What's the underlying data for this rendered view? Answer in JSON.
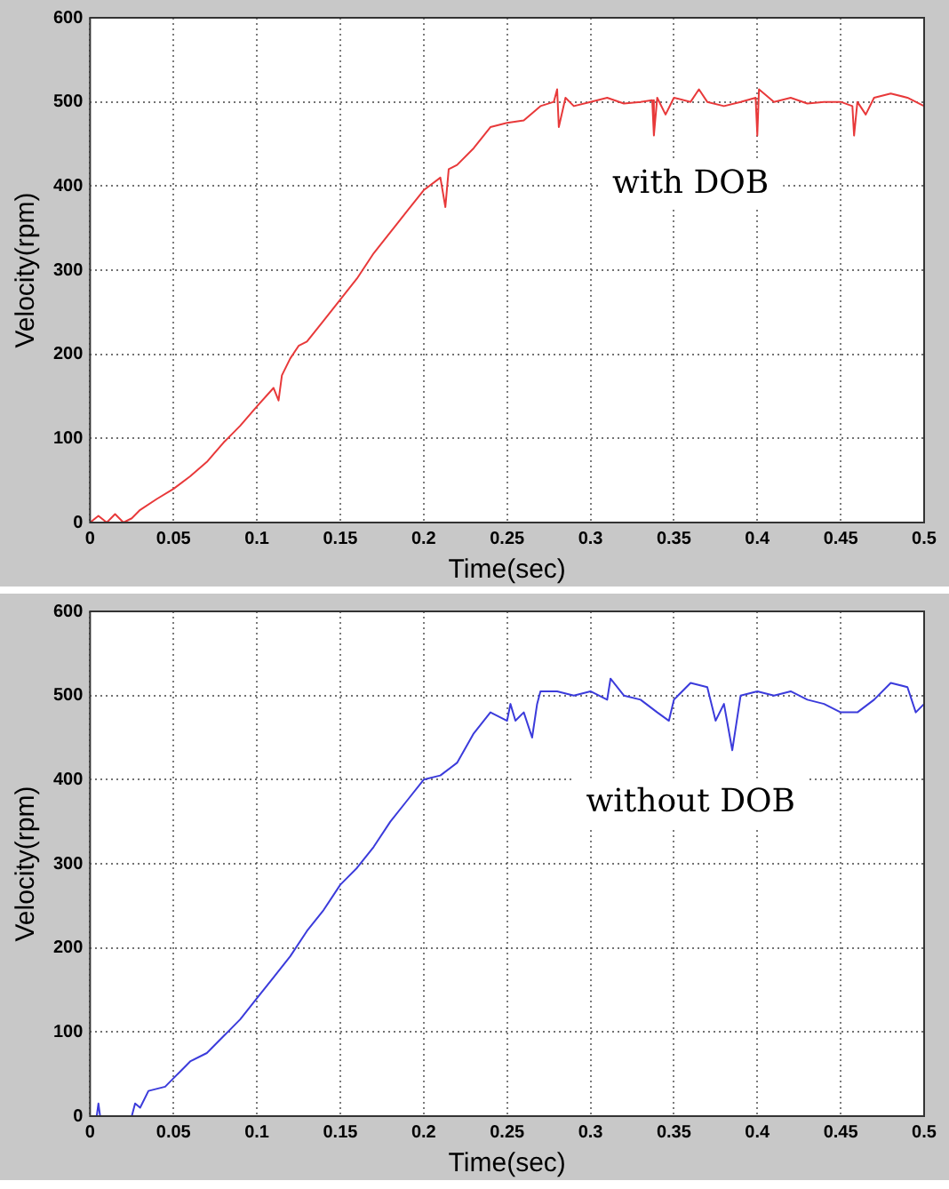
{
  "chart_data": [
    {
      "type": "line",
      "xlabel": "Time(sec)",
      "ylabel": "Velocity(rpm)",
      "annotations": [
        "with DOB"
      ],
      "grid": true,
      "xlim": [
        0,
        0.5
      ],
      "xticks": [
        0,
        0.05,
        0.1,
        0.15,
        0.2,
        0.25,
        0.3,
        0.35,
        0.4,
        0.45,
        0.5
      ],
      "ylim": [
        0,
        600
      ],
      "yticks": [
        0,
        100,
        200,
        300,
        400,
        500,
        600
      ],
      "x": [
        0,
        0.005,
        0.01,
        0.015,
        0.02,
        0.025,
        0.03,
        0.04,
        0.05,
        0.06,
        0.07,
        0.08,
        0.09,
        0.1,
        0.11,
        0.113,
        0.115,
        0.12,
        0.125,
        0.13,
        0.14,
        0.15,
        0.16,
        0.17,
        0.18,
        0.19,
        0.2,
        0.21,
        0.213,
        0.215,
        0.22,
        0.23,
        0.24,
        0.25,
        0.26,
        0.27,
        0.278,
        0.28,
        0.281,
        0.285,
        0.29,
        0.3,
        0.31,
        0.32,
        0.33,
        0.337,
        0.338,
        0.34,
        0.345,
        0.35,
        0.36,
        0.365,
        0.37,
        0.38,
        0.39,
        0.399,
        0.4,
        0.401,
        0.41,
        0.42,
        0.43,
        0.44,
        0.45,
        0.457,
        0.458,
        0.46,
        0.465,
        0.47,
        0.48,
        0.49,
        0.5
      ],
      "series": [
        {
          "color": "#e8393a",
          "values": [
            0,
            8,
            0,
            10,
            0,
            5,
            15,
            28,
            40,
            55,
            72,
            95,
            115,
            138,
            160,
            145,
            175,
            195,
            210,
            215,
            240,
            265,
            290,
            320,
            345,
            370,
            395,
            410,
            375,
            420,
            425,
            445,
            470,
            475,
            478,
            495,
            500,
            515,
            470,
            505,
            495,
            500,
            505,
            498,
            500,
            502,
            460,
            505,
            485,
            505,
            500,
            515,
            500,
            495,
            500,
            505,
            460,
            515,
            500,
            505,
            498,
            500,
            500,
            495,
            460,
            500,
            485,
            505,
            510,
            505,
            495
          ]
        }
      ]
    },
    {
      "type": "line",
      "xlabel": "Time(sec)",
      "ylabel": "Velocity(rpm)",
      "annotations": [
        "without DOB"
      ],
      "grid": true,
      "xlim": [
        0,
        0.5
      ],
      "xticks": [
        0,
        0.05,
        0.1,
        0.15,
        0.2,
        0.25,
        0.3,
        0.35,
        0.4,
        0.45,
        0.5
      ],
      "ylim": [
        0,
        600
      ],
      "yticks": [
        0,
        100,
        200,
        300,
        400,
        500,
        600
      ],
      "x": [
        0,
        0.004,
        0.005,
        0.006,
        0.025,
        0.027,
        0.03,
        0.035,
        0.045,
        0.05,
        0.055,
        0.06,
        0.07,
        0.08,
        0.09,
        0.1,
        0.11,
        0.12,
        0.13,
        0.14,
        0.15,
        0.16,
        0.17,
        0.18,
        0.19,
        0.2,
        0.21,
        0.22,
        0.23,
        0.24,
        0.25,
        0.252,
        0.255,
        0.26,
        0.265,
        0.268,
        0.27,
        0.28,
        0.29,
        0.3,
        0.31,
        0.312,
        0.32,
        0.33,
        0.34,
        0.347,
        0.35,
        0.36,
        0.37,
        0.375,
        0.38,
        0.385,
        0.39,
        0.4,
        0.41,
        0.42,
        0.43,
        0.44,
        0.45,
        0.46,
        0.47,
        0.48,
        0.49,
        0.495,
        0.5
      ],
      "series": [
        {
          "color": "#3b3bdb",
          "values": [
            0,
            0,
            15,
            0,
            0,
            15,
            10,
            30,
            35,
            45,
            55,
            65,
            75,
            95,
            115,
            140,
            165,
            190,
            220,
            245,
            275,
            295,
            320,
            350,
            375,
            400,
            405,
            420,
            455,
            480,
            470,
            490,
            470,
            480,
            450,
            490,
            505,
            505,
            500,
            505,
            495,
            520,
            500,
            495,
            480,
            470,
            495,
            515,
            510,
            470,
            490,
            435,
            500,
            505,
            500,
            505,
            495,
            490,
            480,
            480,
            495,
            515,
            510,
            480,
            490
          ]
        }
      ]
    }
  ]
}
